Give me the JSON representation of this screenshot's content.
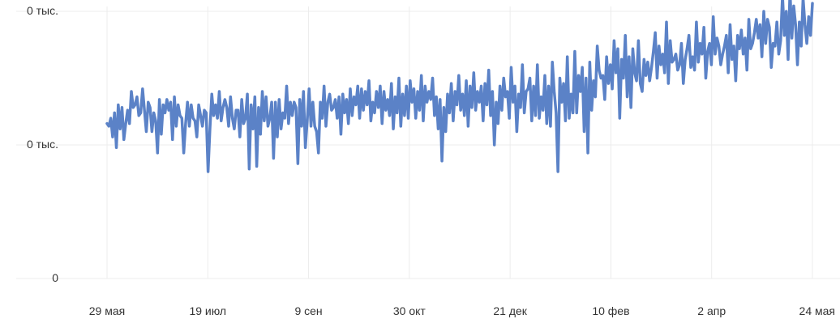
{
  "chart_data": {
    "type": "line",
    "title": "",
    "xlabel": "",
    "ylabel": "",
    "x_ticks": [
      "29 мая",
      "19 июл",
      "9 сен",
      "30 окт",
      "21 дек",
      "10 фев",
      "2 апр",
      "24 мая"
    ],
    "y_ticks": [
      "0",
      "0 тыс.",
      "0 тыс."
    ],
    "ylim": [
      0,
      100
    ],
    "grid": true,
    "legend": "none",
    "series": [
      {
        "color": "#5b82c7",
        "values": [
          58,
          57,
          60,
          53,
          62,
          49,
          65,
          56,
          64,
          52,
          58,
          63,
          58,
          70,
          64,
          65,
          68,
          61,
          62,
          71,
          63,
          55,
          66,
          64,
          55,
          62,
          59,
          47,
          67,
          54,
          65,
          62,
          67,
          63,
          66,
          52,
          68,
          57,
          65,
          61,
          60,
          47,
          58,
          66,
          57,
          65,
          60,
          59,
          53,
          65,
          61,
          57,
          63,
          62,
          40,
          56,
          69,
          61,
          65,
          60,
          70,
          59,
          64,
          67,
          64,
          57,
          68,
          60,
          56,
          63,
          63,
          53,
          67,
          58,
          60,
          69,
          41,
          65,
          56,
          68,
          42,
          64,
          54,
          70,
          59,
          68,
          57,
          60,
          66,
          45,
          66,
          53,
          67,
          56,
          62,
          60,
          72,
          58,
          66,
          61,
          66,
          64,
          43,
          67,
          57,
          70,
          49,
          59,
          71,
          57,
          66,
          57,
          55,
          47,
          66,
          60,
          72,
          57,
          66,
          69,
          63,
          64,
          67,
          60,
          68,
          54,
          69,
          62,
          67,
          58,
          71,
          61,
          68,
          65,
          72,
          60,
          71,
          63,
          70,
          65,
          74,
          59,
          66,
          62,
          70,
          64,
          72,
          58,
          70,
          63,
          67,
          61,
          73,
          56,
          68,
          62,
          75,
          57,
          69,
          61,
          72,
          60,
          74,
          66,
          71,
          60,
          70,
          63,
          76,
          59,
          72,
          66,
          70,
          67,
          75,
          61,
          68,
          56,
          67,
          44,
          64,
          55,
          69,
          62,
          73,
          59,
          70,
          65,
          76,
          63,
          69,
          61,
          74,
          57,
          72,
          64,
          77,
          63,
          70,
          66,
          72,
          59,
          73,
          65,
          78,
          61,
          70,
          50,
          66,
          58,
          72,
          63,
          75,
          68,
          70,
          60,
          79,
          66,
          72,
          55,
          69,
          64,
          80,
          62,
          70,
          71,
          75,
          59,
          72,
          61,
          80,
          60,
          68,
          63,
          76,
          58,
          72,
          57,
          81,
          70,
          62,
          40,
          75,
          66,
          73,
          59,
          83,
          60,
          69,
          62,
          85,
          62,
          76,
          70,
          79,
          55,
          75,
          47,
          81,
          63,
          74,
          68,
          87,
          78,
          75,
          76,
          67,
          83,
          73,
          80,
          71,
          89,
          77,
          86,
          60,
          82,
          75,
          91,
          68,
          83,
          64,
          86,
          77,
          74,
          89,
          73,
          70,
          82,
          76,
          81,
          74,
          79,
          85,
          92,
          75,
          87,
          80,
          84,
          77,
          96,
          73,
          89,
          81,
          82,
          84,
          78,
          80,
          88,
          73,
          82,
          86,
          91,
          79,
          83,
          78,
          96,
          81,
          88,
          84,
          94,
          75,
          85,
          88,
          80,
          98,
          84,
          90,
          87,
          80,
          84,
          87,
          91,
          77,
          95,
          82,
          87,
          74,
          91,
          86,
          93,
          84,
          90,
          78,
          97,
          86,
          88,
          92,
          97,
          90,
          95,
          83,
          100,
          88,
          97,
          94,
          79,
          88,
          87,
          96,
          84,
          89,
          106,
          91,
          100,
          82,
          108,
          90,
          102,
          95,
          80,
          96,
          87,
          105,
          95,
          88,
          98,
          91,
          103
        ]
      }
    ]
  }
}
